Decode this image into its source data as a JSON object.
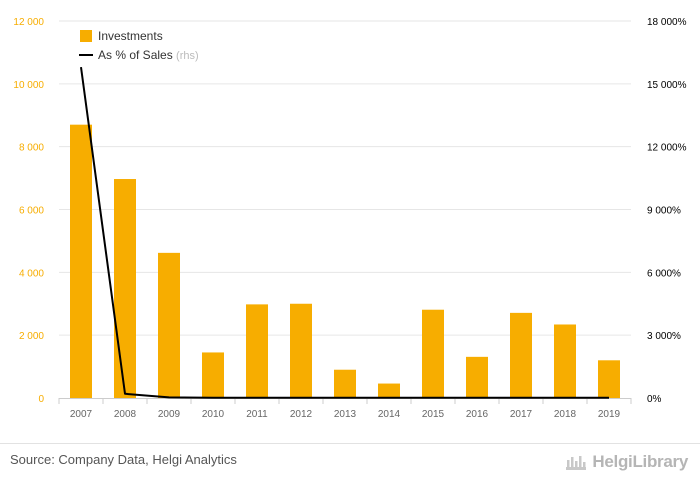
{
  "chart_data": {
    "type": "bar",
    "categories": [
      "2007",
      "2008",
      "2009",
      "2010",
      "2011",
      "2012",
      "2013",
      "2014",
      "2015",
      "2016",
      "2017",
      "2018",
      "2019"
    ],
    "series": [
      {
        "name": "Investments",
        "type": "bar",
        "axis": "left",
        "color": "#f7ad00",
        "values": [
          8700,
          6970,
          4620,
          1450,
          2980,
          3000,
          900,
          460,
          2810,
          1310,
          2710,
          2340,
          1200
        ]
      },
      {
        "name": "As % of Sales",
        "name_suffix": "(rhs)",
        "type": "line",
        "axis": "right",
        "color": "#000000",
        "values": [
          15800,
          200,
          30,
          10,
          10,
          10,
          10,
          10,
          10,
          10,
          10,
          10,
          10
        ]
      }
    ],
    "y_left": {
      "lim": [
        0,
        12000
      ],
      "ticks": [
        0,
        2000,
        4000,
        6000,
        8000,
        10000,
        12000
      ],
      "tick_labels": [
        "0",
        "2 000",
        "4 000",
        "6 000",
        "8 000",
        "10 000",
        "12 000"
      ],
      "color": "#f7ad00"
    },
    "y_right": {
      "lim": [
        0,
        18000
      ],
      "ticks": [
        0,
        3000,
        6000,
        9000,
        12000,
        15000,
        18000
      ],
      "tick_labels": [
        "0%",
        "3 000%",
        "6 000%",
        "9 000%",
        "12 000%",
        "15 000%",
        "18 000%"
      ],
      "color": "#000000"
    },
    "grid": true,
    "legend_position": "top-left"
  },
  "footer": {
    "source": "Source: Company Data, Helgi Analytics",
    "brand": "HelgiLibrary",
    "brand_icon": "helgi-library-logo-icon"
  }
}
